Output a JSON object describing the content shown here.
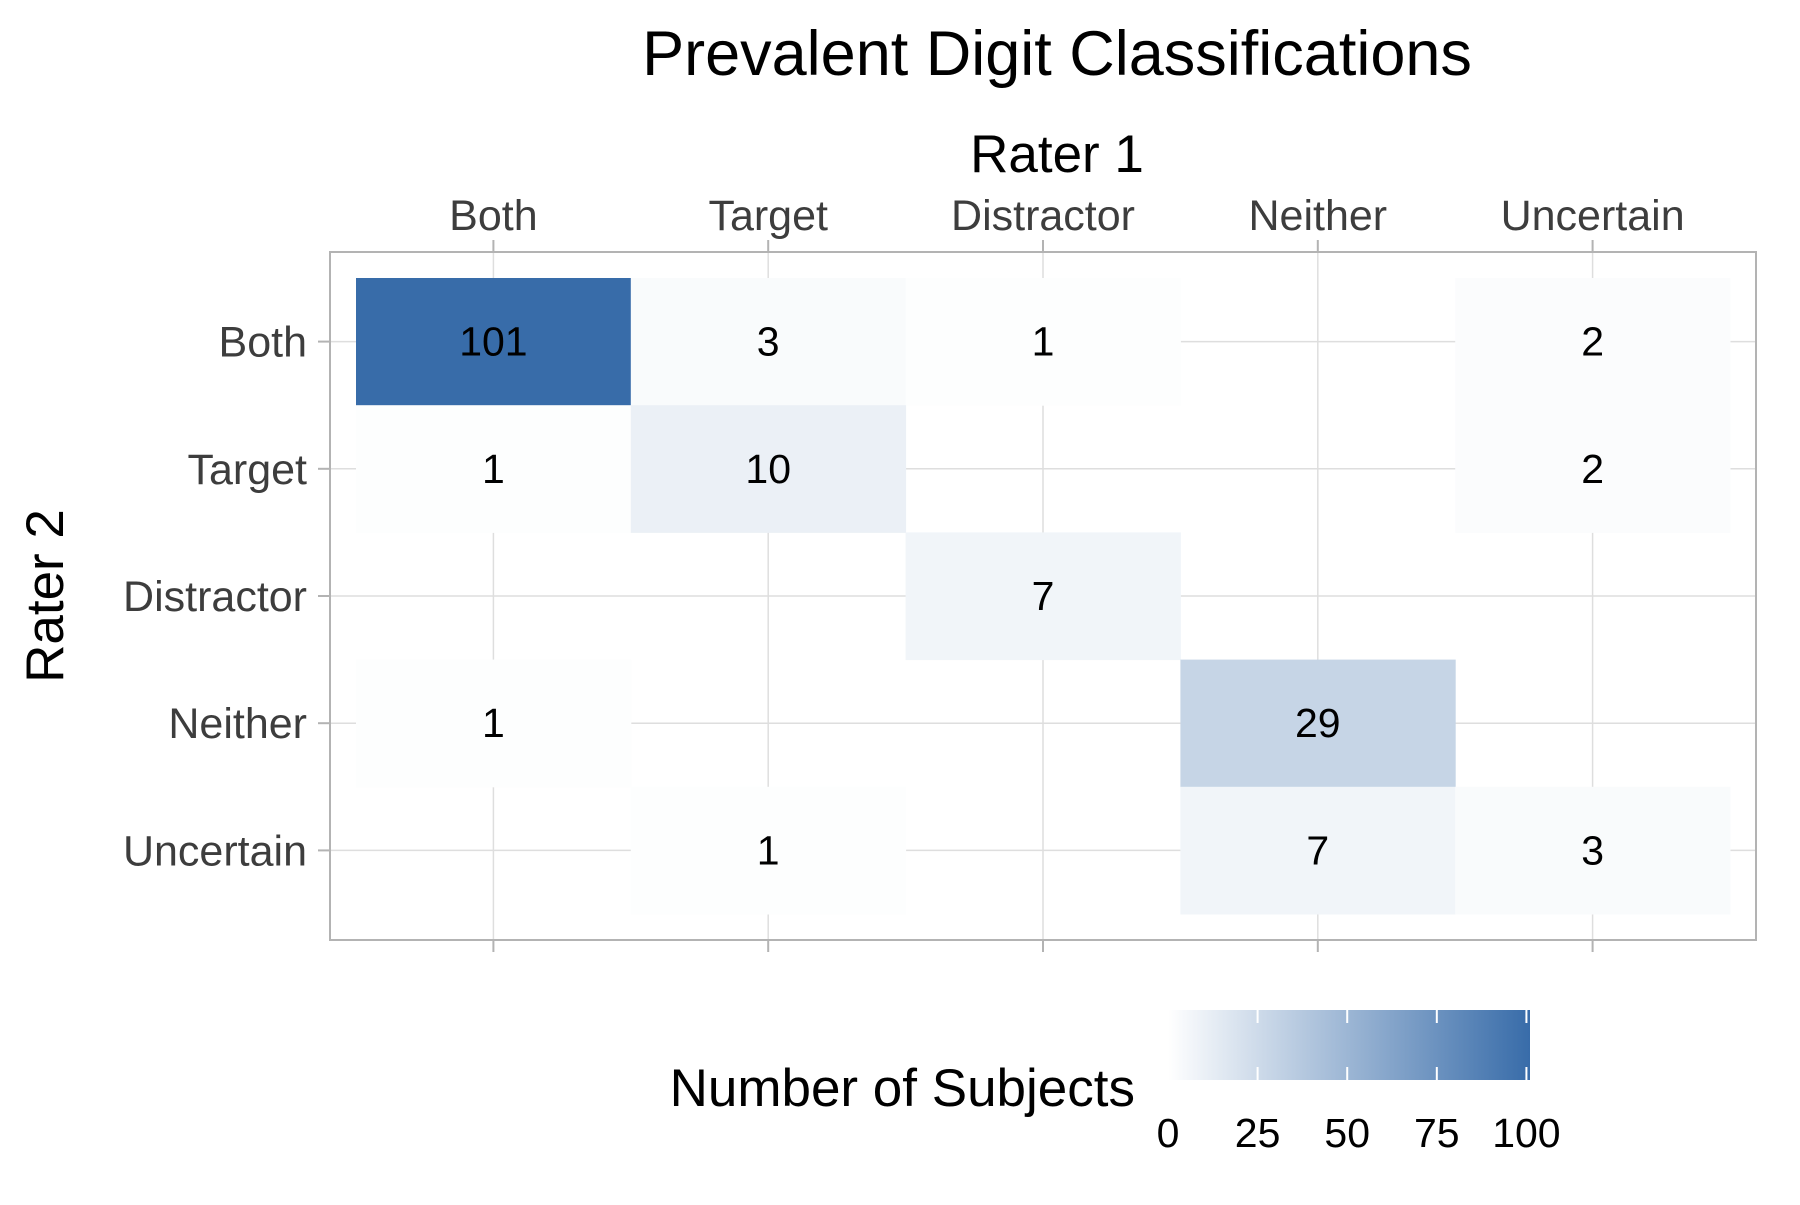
{
  "chart_data": {
    "type": "heatmap",
    "title": "Prevalent Digit Classifications",
    "xlabel": "Rater 1",
    "ylabel": "Rater 2",
    "x_categories": [
      "Both",
      "Target",
      "Distractor",
      "Neither",
      "Uncertain"
    ],
    "y_categories": [
      "Both",
      "Target",
      "Distractor",
      "Neither",
      "Uncertain"
    ],
    "x_axis_position": "top",
    "cells": [
      {
        "x": "Both",
        "y": "Both",
        "value": 101
      },
      {
        "x": "Target",
        "y": "Both",
        "value": 3
      },
      {
        "x": "Distractor",
        "y": "Both",
        "value": 1
      },
      {
        "x": "Uncertain",
        "y": "Both",
        "value": 2
      },
      {
        "x": "Both",
        "y": "Target",
        "value": 1
      },
      {
        "x": "Target",
        "y": "Target",
        "value": 10
      },
      {
        "x": "Uncertain",
        "y": "Target",
        "value": 2
      },
      {
        "x": "Distractor",
        "y": "Distractor",
        "value": 7
      },
      {
        "x": "Both",
        "y": "Neither",
        "value": 1
      },
      {
        "x": "Neither",
        "y": "Neither",
        "value": 29
      },
      {
        "x": "Target",
        "y": "Uncertain",
        "value": 1
      },
      {
        "x": "Neither",
        "y": "Uncertain",
        "value": 7
      },
      {
        "x": "Uncertain",
        "y": "Uncertain",
        "value": 3
      }
    ],
    "colorbar": {
      "title": "Number of Subjects",
      "min": 0,
      "max": 101,
      "ticks": [
        0,
        25,
        50,
        75,
        100
      ],
      "low_color": "#ffffff",
      "high_color": "#386ca9",
      "position": "bottom"
    },
    "grid": true
  }
}
